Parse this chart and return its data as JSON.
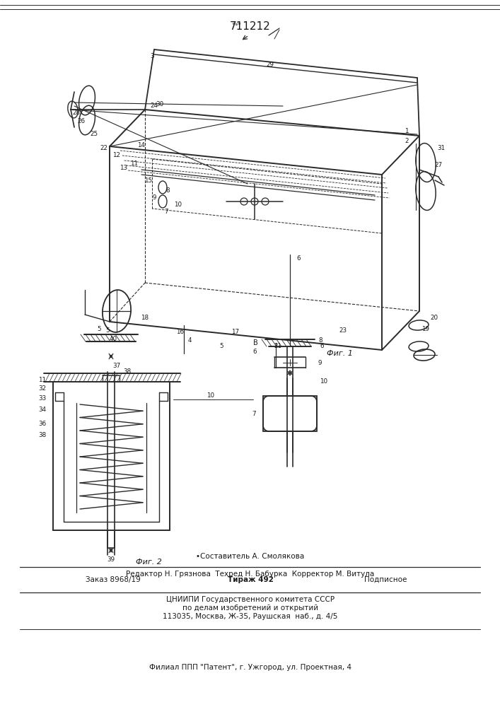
{
  "title": "711212",
  "fig1_label": "Фиг. 1",
  "fig2_label": "Фиг. 2",
  "footer_line1": "•Составитель А. Смолякова",
  "footer_line2": "Редактор Н. Грязнова  Техред Н. Бабурка  Корректор М. Витула",
  "footer_line3a": "Заказ 8968/19",
  "footer_line3b": "Тираж 492",
  "footer_line3c": "Подписное",
  "footer_line4": "ЦНИИПИ Государственного комитета СССР",
  "footer_line5": "по делам изобретений и открытий",
  "footer_line6": "113035, Москва, Ж-35, Раушская  наб., д. 4/5",
  "footer_line7": "Филиал ППП \"Патент\", г. Ужгород, ул. Проектная, 4",
  "bg_color": "#ffffff",
  "line_color": "#2a2a2a",
  "text_color": "#1a1a1a"
}
